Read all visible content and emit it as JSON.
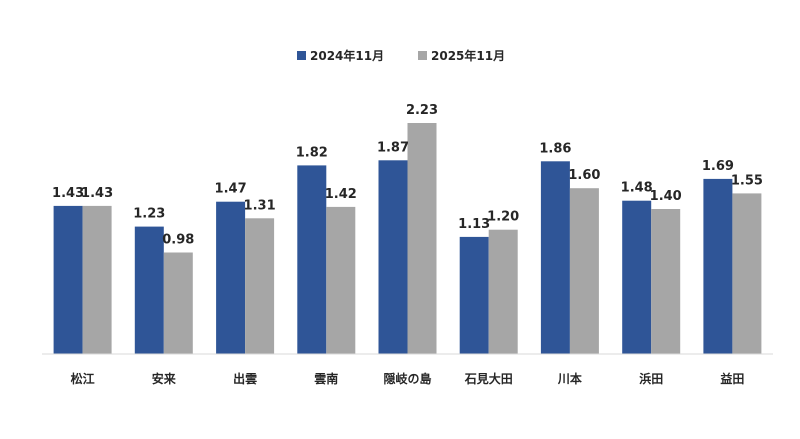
{
  "chart_data": {
    "type": "bar",
    "title": "",
    "xlabel": "",
    "ylabel": "",
    "ylim": [
      0,
      2.4
    ],
    "grid": false,
    "legend_position": "top-center",
    "categories": [
      "松江",
      "安来",
      "出雲",
      "雲南",
      "隠岐の島",
      "石見大田",
      "川本",
      "浜田",
      "益田"
    ],
    "series": [
      {
        "name": "2024年11月",
        "color": "#2F5597",
        "values": [
          1.43,
          1.23,
          1.47,
          1.82,
          1.87,
          1.13,
          1.86,
          1.48,
          1.69
        ]
      },
      {
        "name": "2025年11月",
        "color": "#A6A6A6",
        "values": [
          1.43,
          0.98,
          1.31,
          1.42,
          2.23,
          1.2,
          1.6,
          1.4,
          1.55
        ]
      }
    ],
    "value_labels": [
      [
        "1.43",
        "1.23",
        "1.47",
        "1.82",
        "1.87",
        "1.13",
        "1.86",
        "1.48",
        "1.69"
      ],
      [
        "1.43",
        "0.98",
        "1.31",
        "1.42",
        "2.23",
        "1.20",
        "1.60",
        "1.40",
        "1.55"
      ]
    ]
  }
}
